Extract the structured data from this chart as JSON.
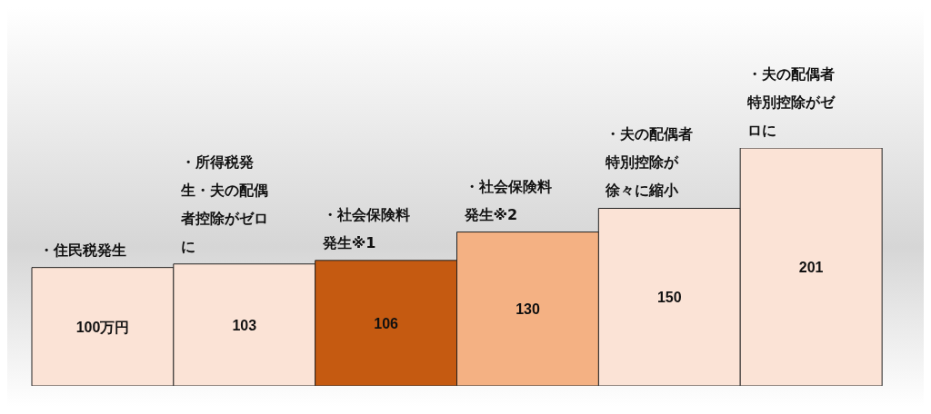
{
  "chart_data": {
    "type": "bar",
    "categories": [
      null,
      null,
      null,
      null,
      null,
      null
    ],
    "values": [
      100,
      103,
      106,
      130,
      150,
      201
    ],
    "colors": [
      "#fbe3d6",
      "#fbe3d6",
      "#c55a11",
      "#f4b183",
      "#fbe3d6",
      "#fbe3d6"
    ],
    "value_labels": [
      "100万円",
      "103",
      "106",
      "130",
      "150",
      "201"
    ],
    "annotations": [
      "・住民税発生",
      "・所得税発生・夫の配偶者控除がゼロに",
      "・社会保険料発生※1",
      "・社会保険料発生※2",
      "・夫の配偶者特別控除が徐々に縮小",
      "・夫の配偶者特別控除がゼロに"
    ]
  }
}
